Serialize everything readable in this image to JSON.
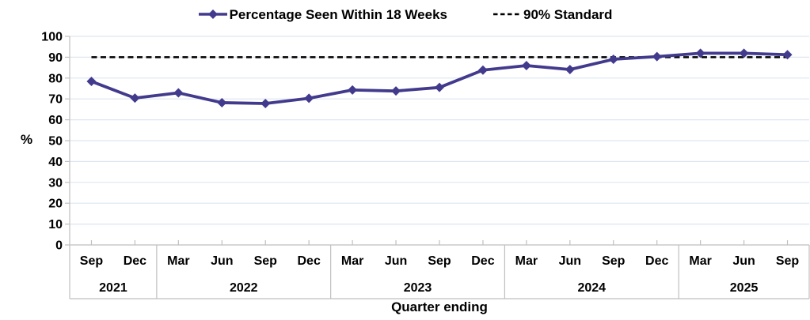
{
  "chart_data": {
    "type": "line",
    "title": "",
    "categories": [
      "Sep",
      "Dec",
      "Mar",
      "Jun",
      "Sep",
      "Dec",
      "Mar",
      "Jun",
      "Sep",
      "Dec",
      "Mar",
      "Jun",
      "Sep",
      "Dec",
      "Mar",
      "Jun",
      "Sep"
    ],
    "year_groups": [
      {
        "label": "2021",
        "count": 2
      },
      {
        "label": "2022",
        "count": 4
      },
      {
        "label": "2023",
        "count": 4
      },
      {
        "label": "2024",
        "count": 4
      },
      {
        "label": "2025",
        "count": 3
      }
    ],
    "series": [
      {
        "name": "Percentage Seen Within 18 Weeks",
        "type": "line",
        "marker": "diamond",
        "color": "#423A8C",
        "values": [
          78.4,
          70.4,
          72.9,
          68.2,
          67.8,
          70.3,
          74.3,
          73.8,
          75.5,
          83.8,
          86.0,
          84.1,
          89.0,
          90.3,
          91.9,
          91.9,
          91.2
        ]
      },
      {
        "name": "90% Standard",
        "type": "reference-line",
        "style": "dashed",
        "color": "#000000",
        "value": 90
      }
    ],
    "xlabel": "Quarter ending",
    "ylabel": "%",
    "ylim": [
      0,
      100
    ],
    "ytick_step": 10,
    "grid": true,
    "legend_position": "top",
    "colors": {
      "gridline": "#DCE6F1",
      "axis": "#BFBFBF",
      "text": "#000000"
    }
  }
}
